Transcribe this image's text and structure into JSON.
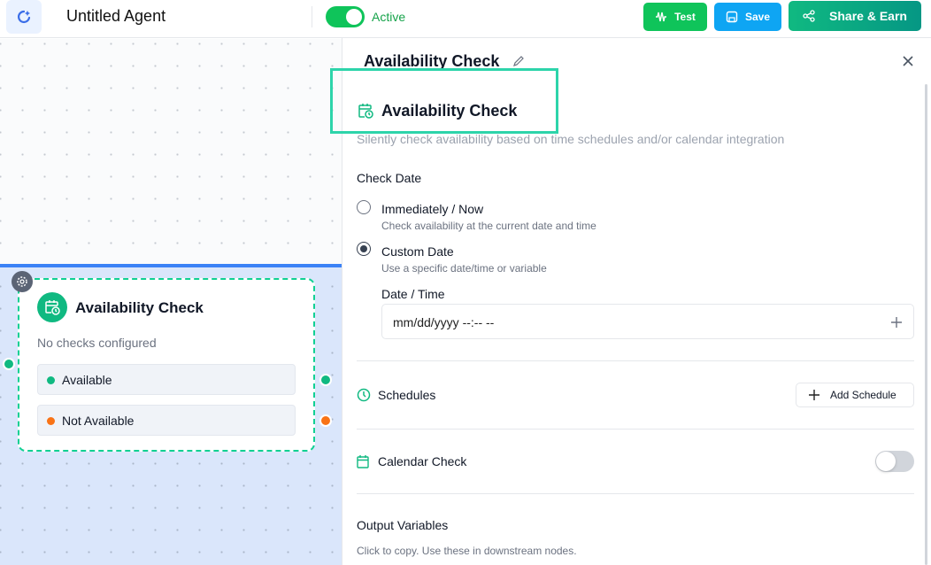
{
  "topbar": {
    "title": "Untitled Agent",
    "status": "Active",
    "active": true,
    "test": "Test",
    "save": "Save",
    "share": "Share & Earn"
  },
  "node": {
    "title": "Availability Check",
    "subtitle": "No checks configured",
    "outputs": [
      {
        "label": "Available",
        "color": "#10b981"
      },
      {
        "label": "Not Available",
        "color": "#f97316"
      }
    ]
  },
  "panel": {
    "title": "Availability Check",
    "heading": "Availability Check",
    "description": "Silently check availability based on time schedules and/or calendar integration",
    "check_date_label": "Check Date",
    "options": [
      {
        "label": "Immediately / Now",
        "desc": "Check availability at the current date and time",
        "selected": false
      },
      {
        "label": "Custom Date",
        "desc": "Use a specific date/time or variable",
        "selected": true
      }
    ],
    "datetime_label": "Date / Time",
    "datetime_placeholder": "mm/dd/yyyy --:-- --",
    "schedules": "Schedules",
    "add_schedule": "Add Schedule",
    "calendar_check": "Calendar Check",
    "calendar_enabled": false,
    "output_variables": "Output Variables",
    "output_hint": "Click to copy. Use these in downstream nodes."
  },
  "colors": {
    "accent": "#10b981",
    "highlight": "#2dd4aa",
    "selection": "#3b82f6"
  }
}
